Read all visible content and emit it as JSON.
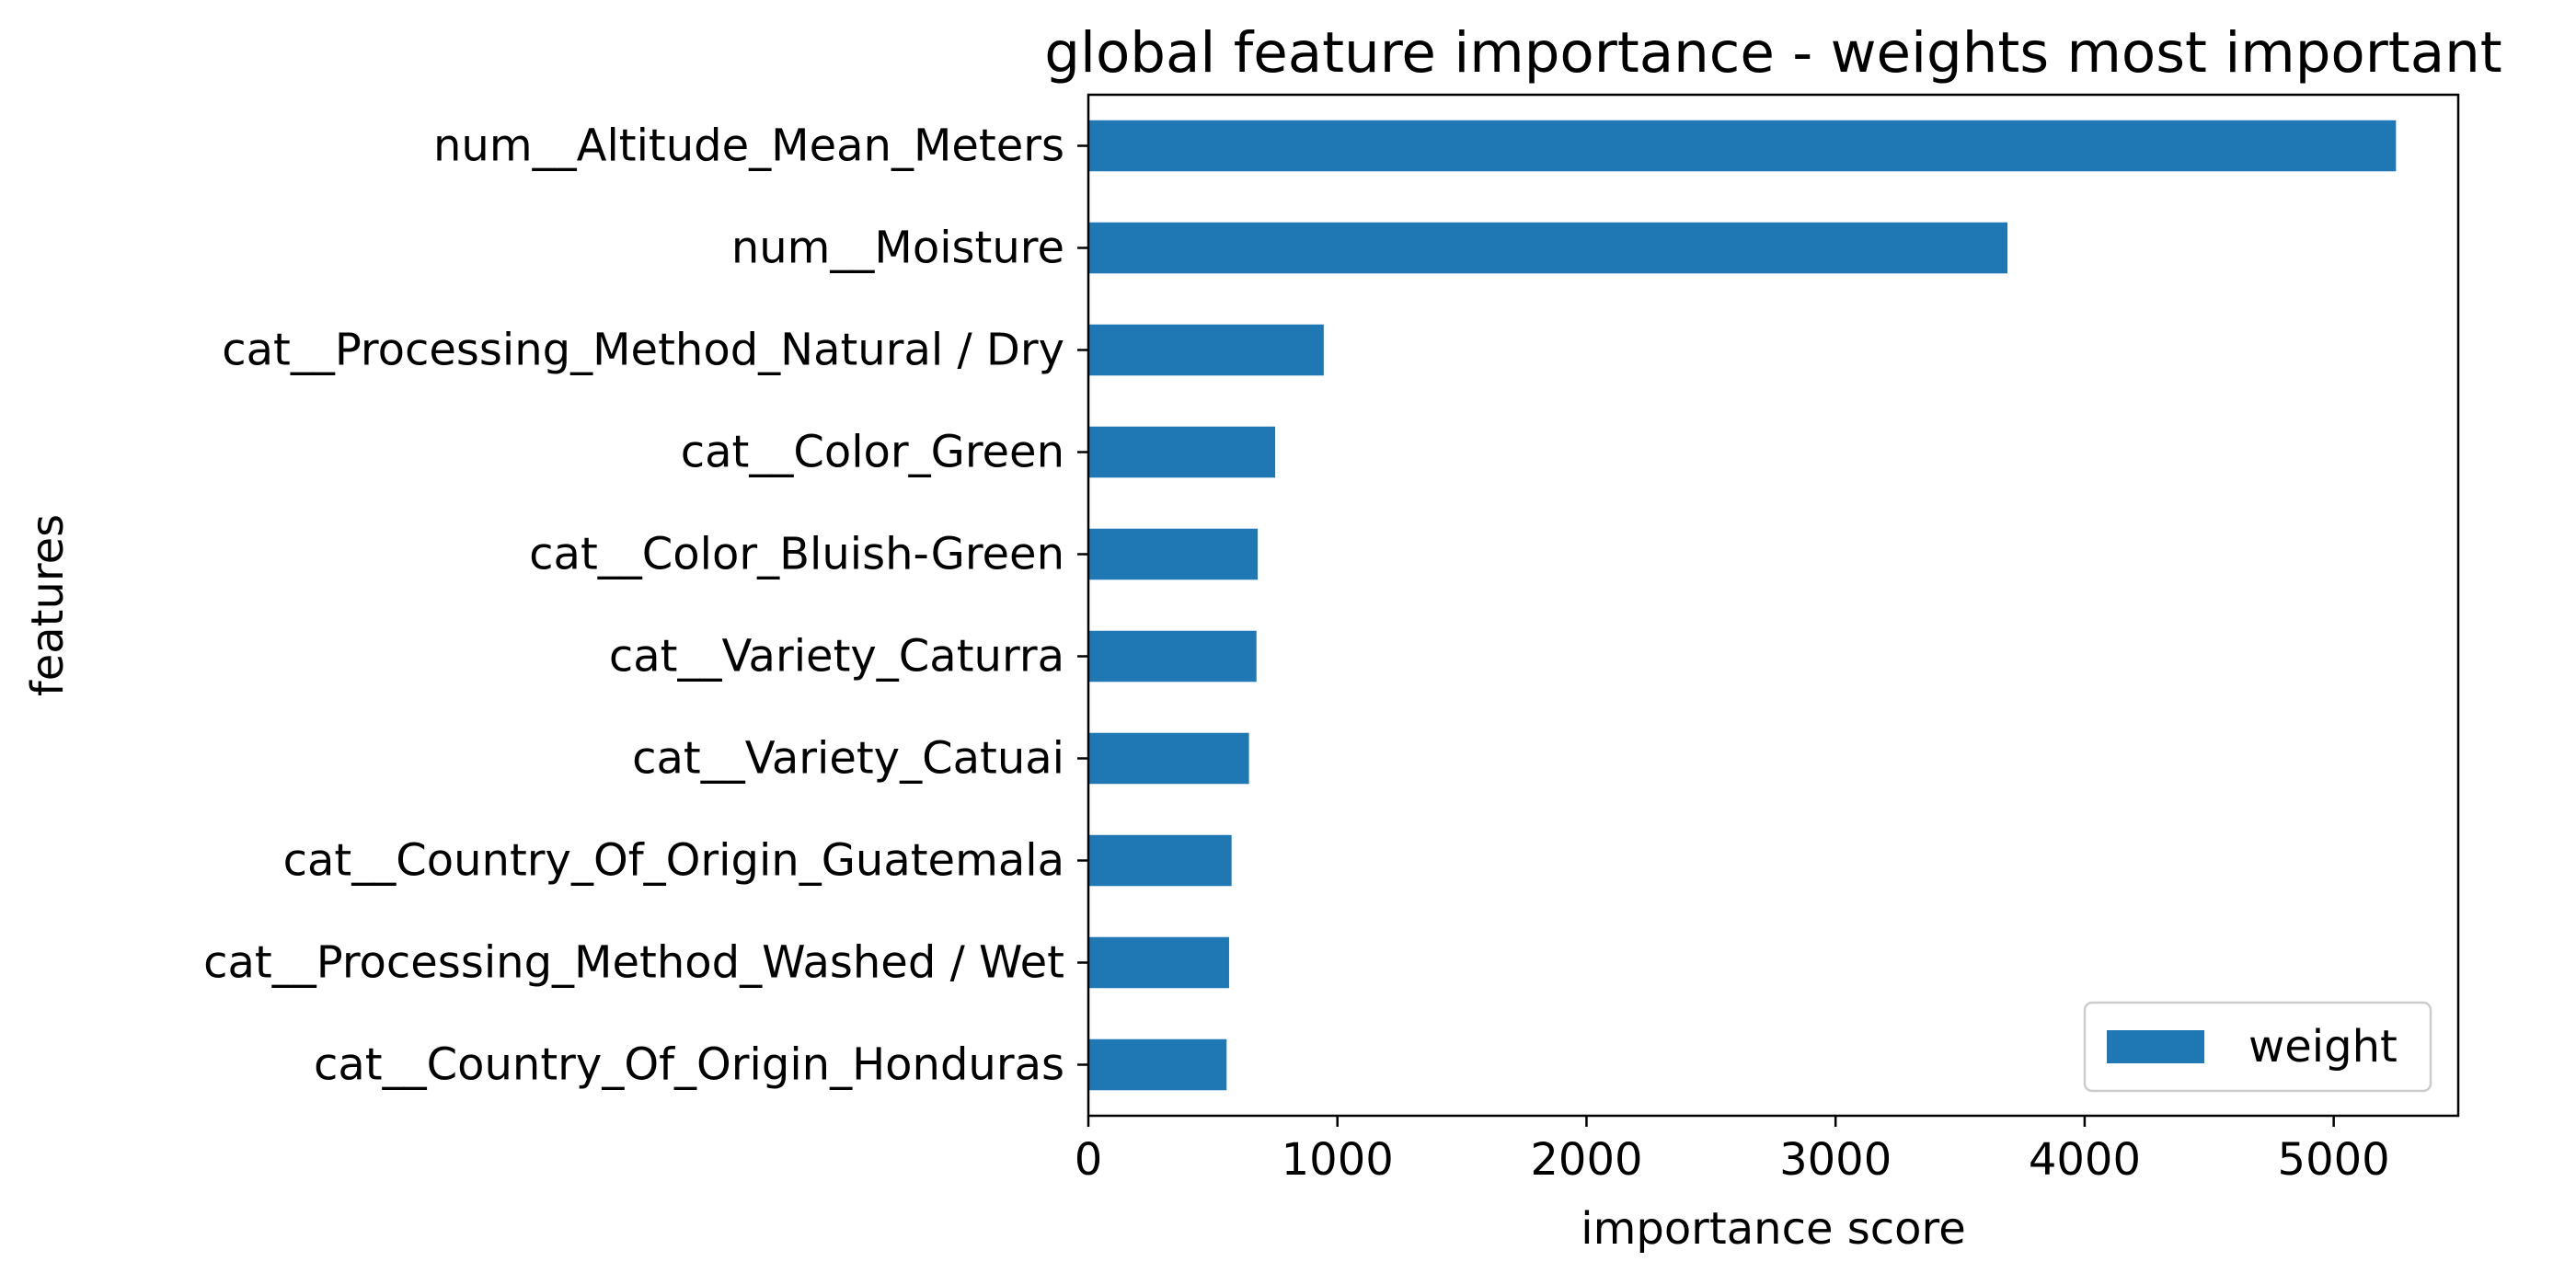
{
  "chart_data": {
    "type": "bar",
    "orientation": "horizontal",
    "title": "global feature importance - weights most important",
    "xlabel": "importance score",
    "ylabel": "features",
    "categories": [
      "num__Altitude_Mean_Meters",
      "num__Moisture",
      "cat__Processing_Method_Natural / Dry",
      "cat__Color_Green",
      "cat__Color_Bluish-Green",
      "cat__Variety_Caturra",
      "cat__Variety_Catuai",
      "cat__Country_Of_Origin_Guatemala",
      "cat__Processing_Method_Washed / Wet",
      "cat__Country_Of_Origin_Honduras"
    ],
    "series": [
      {
        "name": "weight",
        "values": [
          5250,
          3690,
          945,
          750,
          680,
          675,
          645,
          575,
          565,
          555
        ]
      }
    ],
    "xlim": [
      0,
      5500
    ],
    "xticks": [
      0,
      1000,
      2000,
      3000,
      4000,
      5000
    ],
    "grid": false,
    "legend_position": "lower-right",
    "bar_color": "#1f77b4"
  }
}
